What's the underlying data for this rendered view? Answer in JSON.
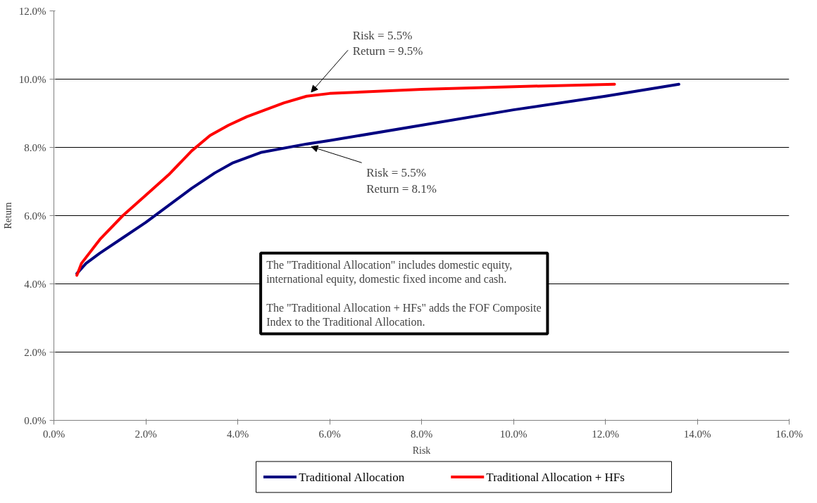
{
  "chart_data": {
    "type": "line",
    "xlabel": "Risk",
    "ylabel": "Return",
    "xlim": [
      0,
      16
    ],
    "xticks": [
      {
        "value": 0,
        "label": "0.0%"
      },
      {
        "value": 2,
        "label": "2.0%"
      },
      {
        "value": 4,
        "label": "4.0%"
      },
      {
        "value": 6,
        "label": "6.0%"
      },
      {
        "value": 8,
        "label": "8.0%"
      },
      {
        "value": 10,
        "label": "10.0%"
      },
      {
        "value": 12,
        "label": "12.0%"
      },
      {
        "value": 14,
        "label": "14.0%"
      },
      {
        "value": 16,
        "label": "16.0%"
      }
    ],
    "ylim": [
      0,
      12
    ],
    "yticks": [
      {
        "value": 0,
        "label": "0.0%"
      },
      {
        "value": 2,
        "label": "2.0%"
      },
      {
        "value": 4,
        "label": "4.0%"
      },
      {
        "value": 6,
        "label": "6.0%"
      },
      {
        "value": 8,
        "label": "8.0%"
      },
      {
        "value": 10,
        "label": "10.0%"
      },
      {
        "value": 12,
        "label": "12.0%"
      }
    ],
    "grid": "y",
    "legend": "bottom",
    "line_style": "solid",
    "marker": "none",
    "series": [
      {
        "name": "Traditional Allocation",
        "color": "#000080",
        "x": [
          0.5,
          0.7,
          1.0,
          1.5,
          2.0,
          2.5,
          3.0,
          3.5,
          3.9,
          4.5,
          5.5,
          6.0,
          8.0,
          10.0,
          12.0,
          13.6
        ],
        "values": [
          4.3,
          4.6,
          4.9,
          5.35,
          5.8,
          6.3,
          6.8,
          7.25,
          7.55,
          7.85,
          8.1,
          8.2,
          8.65,
          9.1,
          9.5,
          9.85
        ]
      },
      {
        "name": "Traditional Allocation + HFs",
        "color": "#ff0000",
        "x": [
          0.5,
          0.6,
          1.0,
          1.5,
          2.0,
          2.5,
          3.0,
          3.4,
          3.8,
          4.2,
          5.0,
          5.5,
          6.0,
          8.0,
          10.0,
          12.2
        ],
        "values": [
          4.25,
          4.6,
          5.3,
          6.0,
          6.6,
          7.2,
          7.9,
          8.35,
          8.65,
          8.9,
          9.3,
          9.5,
          9.58,
          9.7,
          9.78,
          9.85
        ]
      }
    ],
    "annotations": [
      {
        "text": "Risk = 5.5%\nReturn = 9.5%",
        "x": 5.5,
        "y": 9.5
      },
      {
        "text": "Risk = 5.5%\nReturn = 8.1%",
        "x": 5.5,
        "y": 8.1
      },
      "The \"Traditional Allocation\" includes domestic equity, international equity, domestic fixed income and cash.\n\nThe \"Traditional Allocation + HFs\" adds the FOF Composite Index to the Traditional Allocation."
    ]
  }
}
